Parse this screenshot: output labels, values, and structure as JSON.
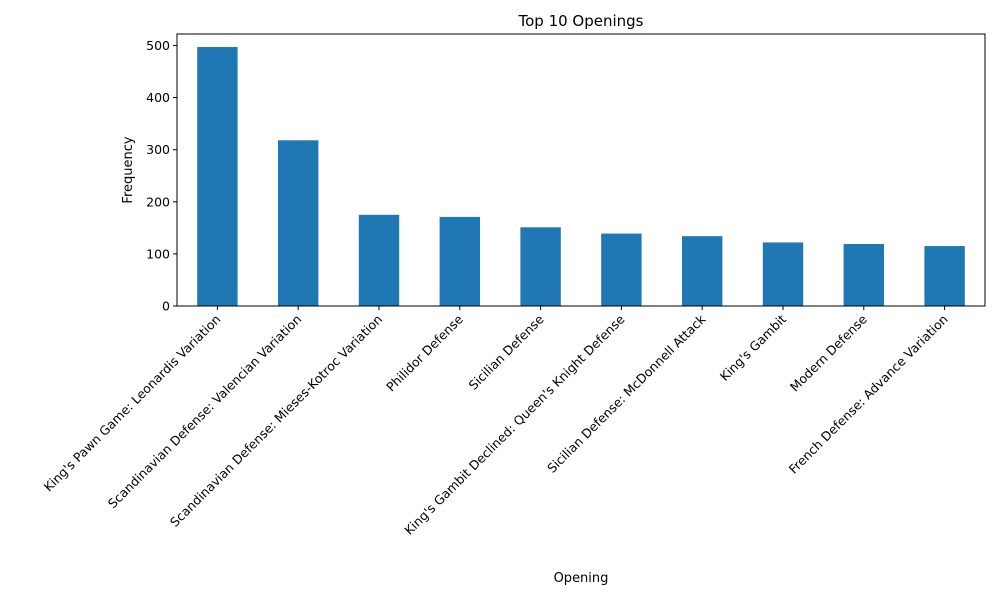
{
  "chart_data": {
    "type": "bar",
    "title": "Top 10 Openings",
    "xlabel": "Opening",
    "ylabel": "Frequency",
    "categories": [
      "King's Pawn Game: Leonardis Variation",
      "Scandinavian Defense: Valencian Variation",
      "Scandinavian Defense: Mieses-Kotroc Variation",
      "Philidor Defense",
      "Sicilian Defense",
      "King's Gambit Declined: Queen's Knight Defense",
      "Sicilian Defense: McDonnell Attack",
      "King's Gambit",
      "Modern Defense",
      "French Defense: Advance Variation"
    ],
    "values": [
      497,
      318,
      175,
      171,
      151,
      139,
      134,
      122,
      119,
      115
    ],
    "ylim": [
      0,
      522
    ],
    "yticks": [
      "0",
      "100",
      "200",
      "300",
      "400",
      "500"
    ],
    "grid": false,
    "legend": "none",
    "bar_color": "#1f77b4"
  }
}
